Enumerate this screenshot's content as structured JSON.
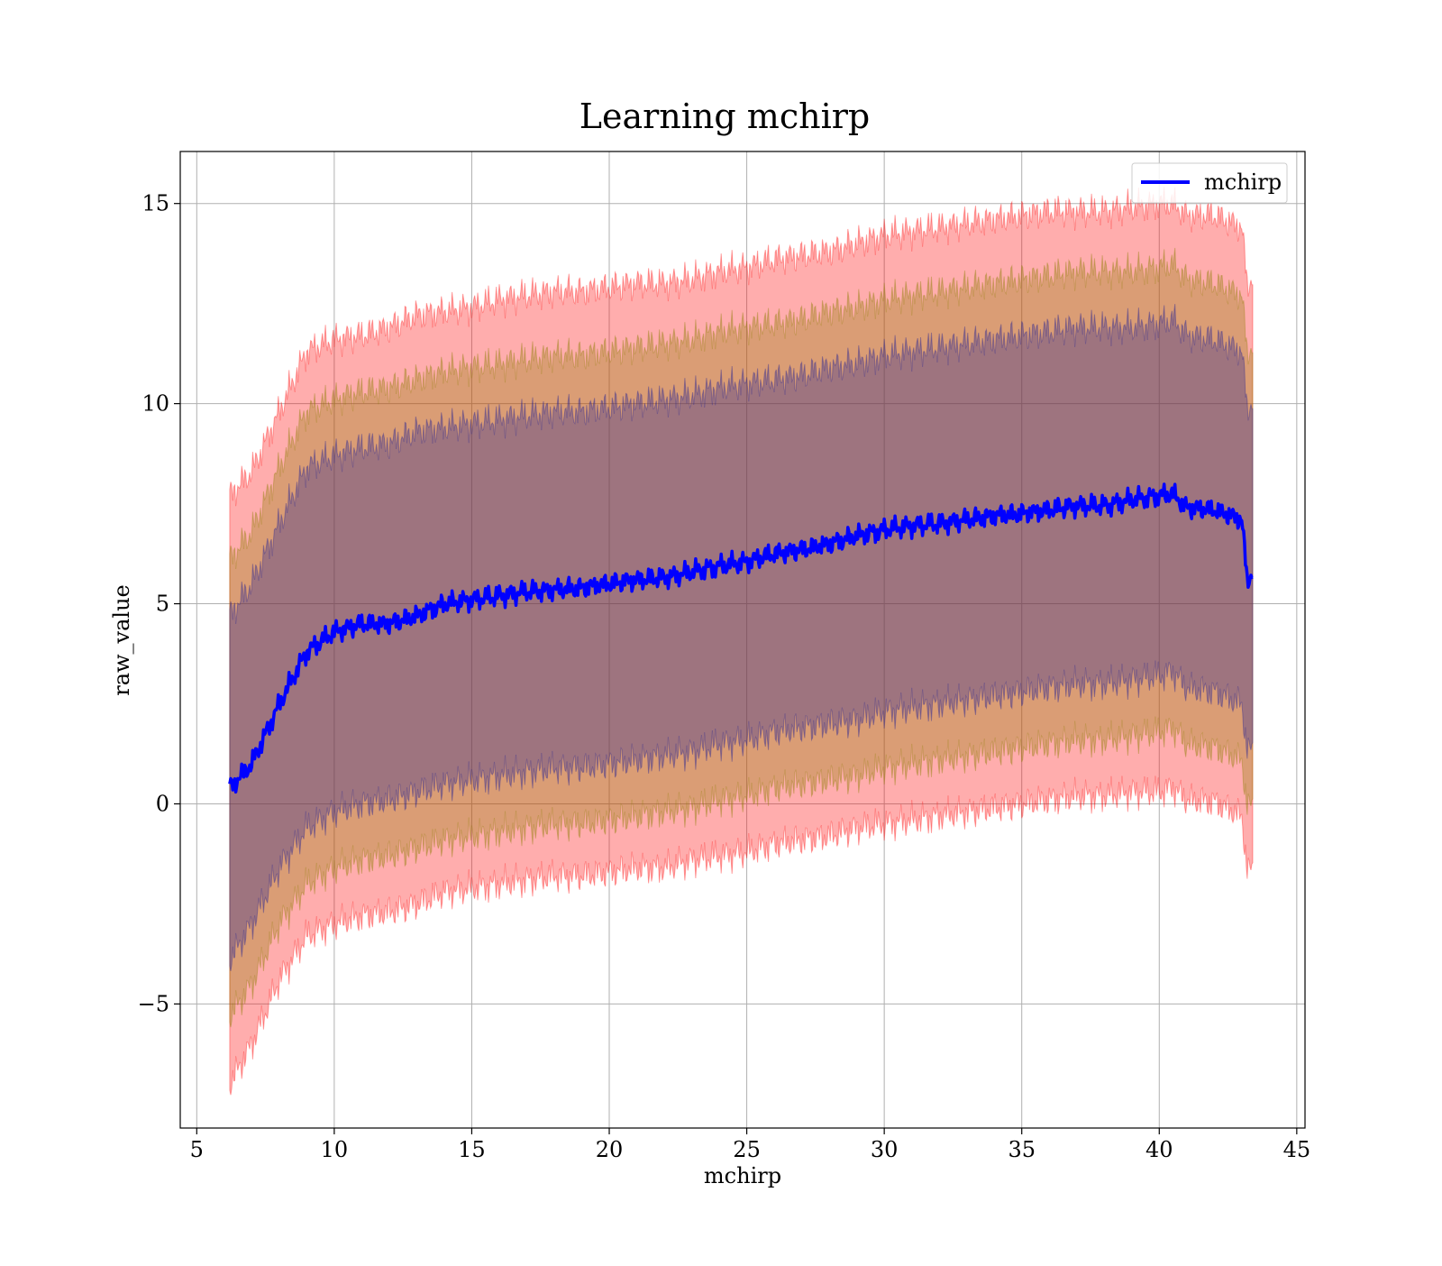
{
  "chart_data": {
    "type": "area",
    "title": "Learning mchirp",
    "xlabel": "mchirp",
    "ylabel": "raw_value",
    "xlim": [
      4.4,
      45.3
    ],
    "ylim": [
      -8.1,
      16.3
    ],
    "xticks": [
      5,
      10,
      15,
      20,
      25,
      30,
      35,
      40,
      45
    ],
    "yticks": [
      -5,
      0,
      5,
      10,
      15
    ],
    "xtick_labels": [
      "5",
      "10",
      "15",
      "20",
      "25",
      "30",
      "35",
      "40",
      "45"
    ],
    "ytick_labels": [
      "−5",
      "0",
      "5",
      "10",
      "15"
    ],
    "grid": true,
    "legend": {
      "position": "top-right",
      "entries": [
        "mchirp"
      ]
    },
    "x": [
      6.2,
      7,
      8,
      9,
      10,
      11,
      12,
      13,
      14,
      15,
      16,
      17,
      18,
      19,
      20,
      21,
      22,
      23,
      24,
      25,
      26,
      27,
      28,
      29,
      30,
      31,
      32,
      33,
      34,
      35,
      36,
      37,
      38,
      39,
      40,
      40.5,
      41,
      42,
      43,
      43.2,
      43.4
    ],
    "series": [
      {
        "name": "mchirp",
        "kind": "line",
        "color": "#0000ff",
        "values": [
          0.4,
          1.0,
          2.5,
          3.8,
          4.3,
          4.5,
          4.5,
          4.7,
          5.0,
          5.1,
          5.2,
          5.3,
          5.35,
          5.4,
          5.5,
          5.6,
          5.65,
          5.8,
          5.95,
          6.05,
          6.25,
          6.35,
          6.5,
          6.7,
          6.85,
          6.95,
          7.0,
          7.1,
          7.2,
          7.25,
          7.35,
          7.45,
          7.45,
          7.6,
          7.7,
          7.75,
          7.4,
          7.35,
          7.1,
          5.6,
          5.75
        ]
      }
    ],
    "bands": [
      {
        "color": "#ff0000",
        "opacity": 0.32,
        "lower": [
          -7.0,
          -6.0,
          -4.4,
          -3.3,
          -3.0,
          -2.8,
          -2.7,
          -2.5,
          -2.2,
          -2.1,
          -2.0,
          -1.9,
          -1.8,
          -1.8,
          -1.7,
          -1.6,
          -1.6,
          -1.4,
          -1.3,
          -1.2,
          -1.0,
          -0.9,
          -0.8,
          -0.6,
          -0.5,
          -0.4,
          -0.3,
          -0.2,
          -0.1,
          0.0,
          0.1,
          0.2,
          0.2,
          0.3,
          0.3,
          0.4,
          0.1,
          0.05,
          -0.3,
          -1.7,
          -1.6
        ],
        "upper": [
          7.7,
          8.3,
          9.8,
          11.3,
          11.6,
          11.7,
          11.9,
          12.2,
          12.3,
          12.4,
          12.6,
          12.7,
          12.8,
          12.8,
          12.9,
          13.0,
          13.0,
          13.1,
          13.3,
          13.4,
          13.6,
          13.7,
          13.8,
          14.0,
          14.2,
          14.3,
          14.4,
          14.5,
          14.6,
          14.7,
          14.8,
          14.8,
          14.8,
          14.9,
          15.0,
          15.0,
          14.7,
          14.7,
          14.4,
          13.0,
          13.1
        ]
      },
      {
        "color": "#8b7d00",
        "opacity": 0.32,
        "lower": [
          -5.3,
          -4.5,
          -3.0,
          -2.0,
          -1.6,
          -1.4,
          -1.3,
          -1.1,
          -0.9,
          -0.8,
          -0.7,
          -0.6,
          -0.5,
          -0.5,
          -0.4,
          -0.3,
          -0.2,
          -0.1,
          0.1,
          0.2,
          0.4,
          0.5,
          0.6,
          0.7,
          0.9,
          1.0,
          1.1,
          1.2,
          1.3,
          1.4,
          1.5,
          1.6,
          1.6,
          1.7,
          1.8,
          1.9,
          1.5,
          1.4,
          1.1,
          -0.1,
          0.0
        ],
        "upper": [
          6.1,
          6.8,
          8.4,
          9.8,
          10.1,
          10.3,
          10.4,
          10.6,
          10.8,
          10.9,
          11.0,
          11.1,
          11.2,
          11.2,
          11.3,
          11.4,
          11.5,
          11.6,
          11.8,
          11.9,
          12.0,
          12.1,
          12.3,
          12.4,
          12.6,
          12.7,
          12.8,
          12.9,
          13.0,
          13.1,
          13.2,
          13.3,
          13.3,
          13.3,
          13.4,
          13.5,
          13.1,
          13.0,
          12.7,
          11.3,
          11.4
        ]
      },
      {
        "color": "#1e1e96",
        "opacity": 0.32,
        "lower": [
          -3.9,
          -3.0,
          -1.6,
          -0.6,
          -0.2,
          0.0,
          0.1,
          0.3,
          0.5,
          0.6,
          0.7,
          0.8,
          0.9,
          0.9,
          1.0,
          1.1,
          1.2,
          1.3,
          1.5,
          1.6,
          1.8,
          1.9,
          2.0,
          2.1,
          2.3,
          2.4,
          2.5,
          2.6,
          2.7,
          2.8,
          2.9,
          3.0,
          3.0,
          3.1,
          3.2,
          3.3,
          2.9,
          2.8,
          2.5,
          1.3,
          1.4
        ],
        "upper": [
          4.7,
          5.5,
          7.0,
          8.4,
          8.7,
          8.9,
          9.0,
          9.3,
          9.4,
          9.5,
          9.6,
          9.7,
          9.8,
          9.8,
          9.9,
          10.0,
          10.1,
          10.2,
          10.4,
          10.5,
          10.6,
          10.7,
          10.9,
          11.0,
          11.2,
          11.3,
          11.4,
          11.5,
          11.6,
          11.7,
          11.8,
          11.9,
          11.9,
          11.9,
          12.0,
          12.1,
          11.7,
          11.6,
          11.3,
          9.9,
          10.0
        ]
      }
    ]
  }
}
